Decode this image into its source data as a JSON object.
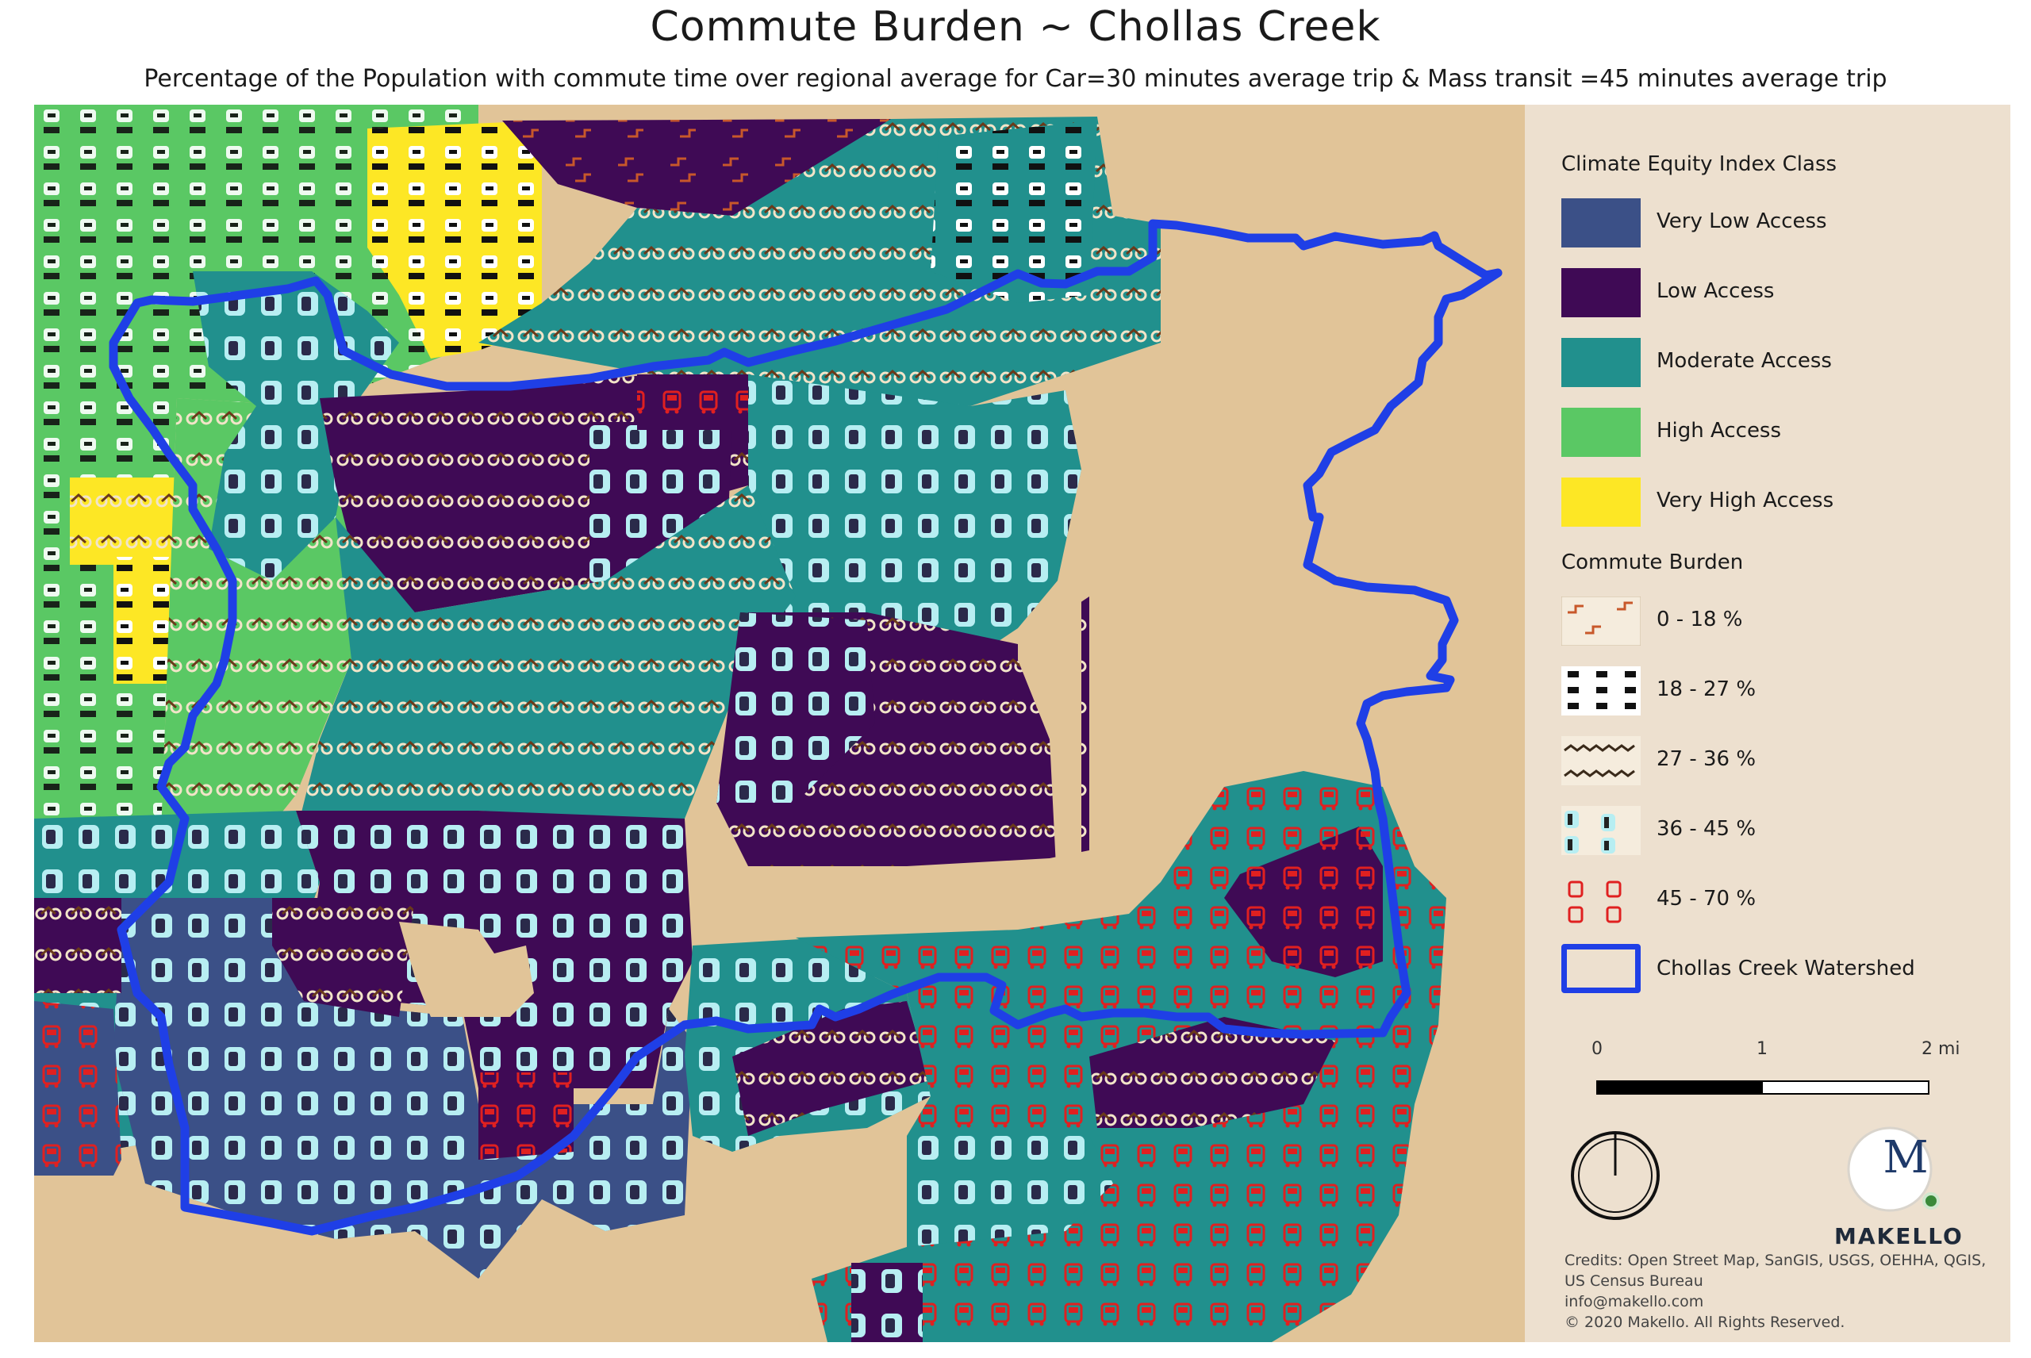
{
  "title": "Commute Burden ~ Chollas Creek",
  "subtitle": "Percentage of the Population with commute time over regional average for Car=30 minutes average trip & Mass transit =45 minutes average trip",
  "colors": {
    "very_low": "#3b5087",
    "low": "#3f0a55",
    "moderate": "#21908d",
    "high": "#5ac864",
    "very_high": "#fde725",
    "background": "#e1c498",
    "watershed": "#1f3fe6"
  },
  "legend": {
    "climate_heading": "Climate Equity Index Class",
    "classes": [
      {
        "label": "Very Low Access",
        "color": "#3b5087"
      },
      {
        "label": "Low Access",
        "color": "#3f0a55"
      },
      {
        "label": "Moderate Access",
        "color": "#21908d"
      },
      {
        "label": "High Access",
        "color": "#5ac864"
      },
      {
        "label": "Very High Access",
        "color": "#fde725"
      }
    ],
    "burden_heading": "Commute Burden",
    "burdens": [
      {
        "label": "0 - 18 %",
        "icon": "link-pattern-icon"
      },
      {
        "label": "18 - 27 %",
        "icon": "car-column-pattern-icon"
      },
      {
        "label": "27 - 36 %",
        "icon": "bike-pattern-icon"
      },
      {
        "label": "36 - 45 %",
        "icon": "car-front-pattern-icon"
      },
      {
        "label": "45 - 70 %",
        "icon": "bus-pattern-icon"
      }
    ],
    "watershed_label": "Chollas Creek Watershed"
  },
  "scale": {
    "labels": [
      "0",
      "1",
      "2 mi"
    ]
  },
  "brand": {
    "letter": "M",
    "name": "MAKELLO"
  },
  "credits": [
    "Credits: Open Street Map, SanGIS, USGS, OEHHA, QGIS,",
    "US Census Bureau",
    "info@makello.com",
    "© 2020 Makello. All Rights Reserved."
  ]
}
